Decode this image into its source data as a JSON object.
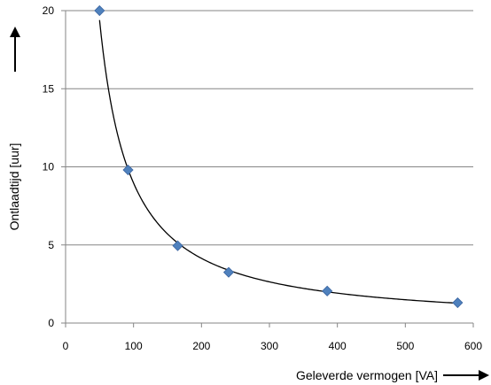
{
  "chart_data": {
    "type": "scatter",
    "title": "",
    "xlabel": "Geleverde vermogen [VA]",
    "ylabel": "Ontlaadtijd [uur]",
    "xlim": [
      0,
      600
    ],
    "ylim": [
      0,
      20
    ],
    "x_ticks": [
      0,
      100,
      200,
      300,
      400,
      500,
      600
    ],
    "y_ticks": [
      0,
      5,
      10,
      15,
      20
    ],
    "x_tick_labels": [
      "0",
      "100",
      "200",
      "300",
      "400",
      "500",
      "600"
    ],
    "y_tick_labels": [
      "0",
      "5",
      "10",
      "15",
      "20"
    ],
    "grid": "horizontal",
    "legend": "none",
    "marker": "diamond",
    "series": [
      {
        "x": [
          50,
          92,
          165,
          240,
          385,
          577
        ],
        "y": [
          20,
          9.8,
          4.95,
          3.25,
          2.05,
          1.3
        ]
      }
    ],
    "trendline": {
      "type": "power",
      "from_x": 50,
      "to_x": 577
    },
    "colors": {
      "marker": "#4f81bd",
      "marker_edge": "#3a64a0",
      "line": "#000000",
      "grid": "#868686",
      "axis": "#868686"
    }
  }
}
